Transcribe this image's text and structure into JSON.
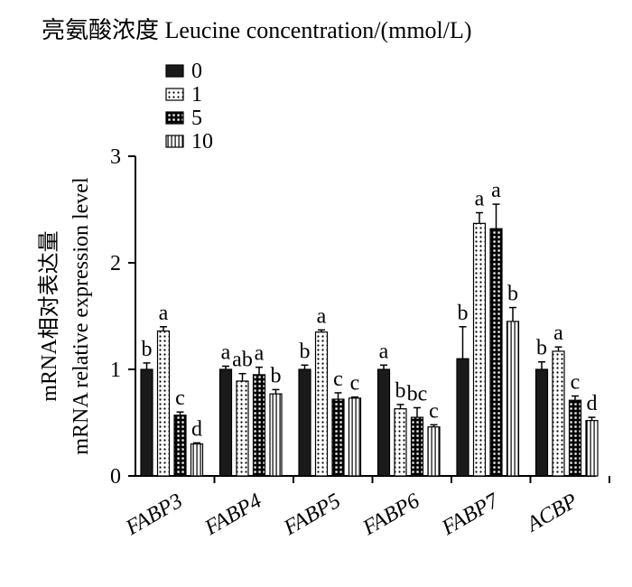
{
  "chart_data": {
    "type": "bar",
    "title": "亮氨酸浓度  Leucine concentration/(mmol/L)",
    "ylabel_cn": "mRNA相对表达量",
    "ylabel_en": "mRNA relative expression level",
    "xlabel": "",
    "ylim": [
      0,
      3
    ],
    "yticks": [
      0,
      1,
      2,
      3
    ],
    "categories": [
      "FABP3",
      "FABP4",
      "FABP5",
      "FABP6",
      "FABP7",
      "ACBP"
    ],
    "legend_position": "top-left",
    "series": [
      {
        "name": "0",
        "pattern": "solid",
        "values": [
          1.0,
          1.0,
          1.0,
          1.0,
          1.1,
          1.0
        ],
        "errors": [
          0.06,
          0.03,
          0.04,
          0.04,
          0.3,
          0.07
        ],
        "letters": [
          "b",
          "a",
          "b",
          "a",
          "b",
          "b"
        ]
      },
      {
        "name": "1",
        "pattern": "dots",
        "values": [
          1.36,
          0.89,
          1.35,
          0.63,
          2.37,
          1.17
        ],
        "errors": [
          0.04,
          0.07,
          0.02,
          0.04,
          0.1,
          0.04
        ],
        "letters": [
          "a",
          "ab",
          "a",
          "b",
          "a",
          "a"
        ]
      },
      {
        "name": "5",
        "pattern": "grid",
        "values": [
          0.57,
          0.95,
          0.72,
          0.55,
          2.32,
          0.71
        ],
        "errors": [
          0.03,
          0.07,
          0.06,
          0.09,
          0.23,
          0.04
        ],
        "letters": [
          "c",
          "a",
          "c",
          "bc",
          "a",
          "c"
        ]
      },
      {
        "name": "10",
        "pattern": "vlines",
        "values": [
          0.3,
          0.77,
          0.73,
          0.46,
          1.45,
          0.52
        ],
        "errors": [
          0.01,
          0.04,
          0.01,
          0.02,
          0.13,
          0.03
        ],
        "letters": [
          "d",
          "b",
          "c",
          "c",
          "b",
          "d"
        ]
      }
    ]
  }
}
